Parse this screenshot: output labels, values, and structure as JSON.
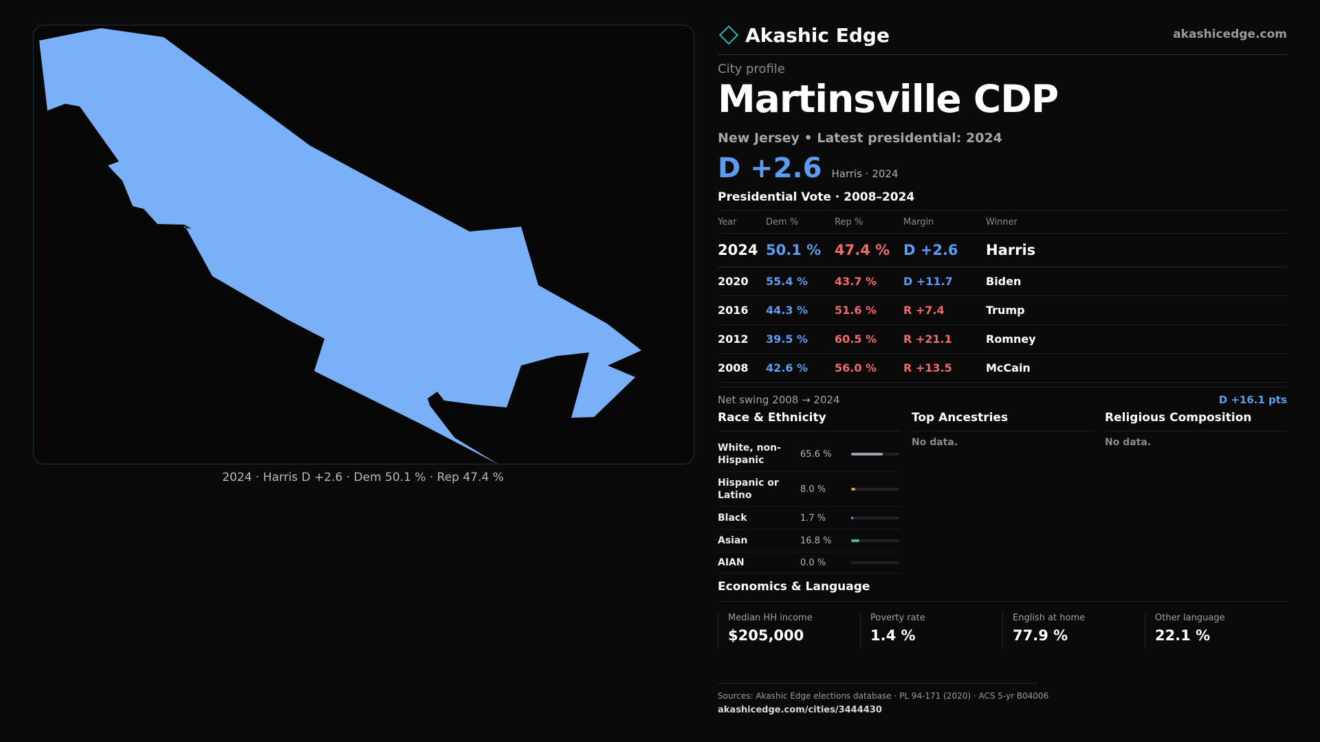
{
  "brand": {
    "name": "Akashic Edge",
    "site": "akashicedge.com"
  },
  "profile": {
    "eyebrow": "City profile",
    "title": "Martinsville CDP",
    "subtitle": "New Jersey • Latest presidential: 2024",
    "margin": "D +2.6",
    "margin_note": "Harris · 2024"
  },
  "map": {
    "caption": "2024 · Harris D +2.6 · Dem 50.1 % · Rep 47.4 %",
    "fill_color": "#7ab0f8"
  },
  "votes": {
    "title": "Presidential Vote · 2008–2024",
    "headers": {
      "year": "Year",
      "dem": "Dem %",
      "rep": "Rep %",
      "margin": "Margin",
      "winner": "Winner"
    },
    "latest": {
      "year": "2024",
      "dem": "50.1 %",
      "rep": "47.4 %",
      "margin": "D +2.6",
      "winner": "Harris"
    },
    "rows": [
      {
        "year": "2020",
        "dem": "55.4 %",
        "rep": "43.7 %",
        "margin": "D +11.7",
        "winner": "Biden"
      },
      {
        "year": "2016",
        "dem": "44.3 %",
        "rep": "51.6 %",
        "margin": "R +7.4",
        "winner": "Trump"
      },
      {
        "year": "2012",
        "dem": "39.5 %",
        "rep": "60.5 %",
        "margin": "R +21.1",
        "winner": "Romney"
      },
      {
        "year": "2008",
        "dem": "42.6 %",
        "rep": "56.0 %",
        "margin": "R +13.5",
        "winner": "McCain"
      }
    ],
    "swing_label": "Net swing 2008 → 2024",
    "swing_value": "D +16.1 pts"
  },
  "race": {
    "title": "Race & Ethnicity",
    "rows": [
      {
        "label": "White, non-Hispanic",
        "value": "65.6 %",
        "pct": 65.6,
        "color": "#9aa0ad"
      },
      {
        "label": "Hispanic or Latino",
        "value": "8.0 %",
        "pct": 8.0,
        "color": "#e0a030"
      },
      {
        "label": "Black",
        "value": "1.7 %",
        "pct": 1.7,
        "color": "#8b7fe0"
      },
      {
        "label": "Asian",
        "value": "16.8 %",
        "pct": 16.8,
        "color": "#34c08a"
      },
      {
        "label": "AIAN",
        "value": "0.0 %",
        "pct": 0.0,
        "color": "#c06060"
      }
    ]
  },
  "ancestries": {
    "title": "Top Ancestries",
    "empty": "No data."
  },
  "religion": {
    "title": "Religious Composition",
    "empty": "No data."
  },
  "economics": {
    "title": "Economics & Language",
    "kpis": [
      {
        "label": "Median HH income",
        "value": "$205,000"
      },
      {
        "label": "Poverty rate",
        "value": "1.4 %"
      },
      {
        "label": "English at home",
        "value": "77.9 %"
      },
      {
        "label": "Other language",
        "value": "22.1 %"
      }
    ]
  },
  "footer": {
    "sources": "Sources: Akashic Edge elections database · PL 94-171 (2020) · ACS 5-yr B04006",
    "url": "akashicedge.com/cities/3444430"
  }
}
